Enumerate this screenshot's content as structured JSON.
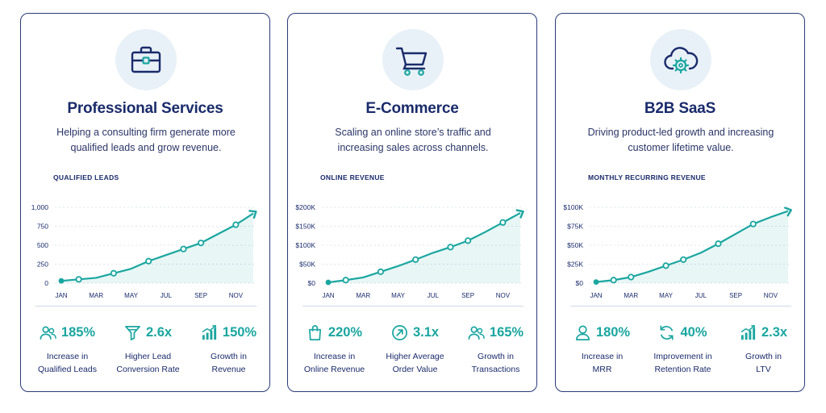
{
  "colors": {
    "accent": "#1aa6a0",
    "navy": "#1a2b6b",
    "icon_bg": "#e9f1f8",
    "border": "#2a3a78"
  },
  "cards": [
    {
      "icon": "briefcase-icon",
      "title": "Professional Services",
      "description": "Helping a consulting firm generate more qualified leads and grow revenue.",
      "chart_label": "QUALIFIED LEADS",
      "metrics": [
        {
          "icon": "users-icon",
          "value": "185%",
          "label": "Increase in\nQualified Leads"
        },
        {
          "icon": "funnel-icon",
          "value": "2.6x",
          "label": "Higher Lead\nConversion Rate"
        },
        {
          "icon": "growth-chart-icon",
          "value": "150%",
          "label": "Growth in\nRevenue"
        }
      ]
    },
    {
      "icon": "shopping-cart-icon",
      "title": "E-Commerce",
      "description": "Scaling an online store’s traffic and increasing sales across channels.",
      "chart_label": "ONLINE REVENUE",
      "metrics": [
        {
          "icon": "shopping-bag-icon",
          "value": "220%",
          "label": "Increase in\nOnline Revenue"
        },
        {
          "icon": "arrow-circle-icon",
          "value": "3.1x",
          "label": "Higher Average\nOrder Value"
        },
        {
          "icon": "users-icon",
          "value": "165%",
          "label": "Growth in\nTransactions"
        }
      ]
    },
    {
      "icon": "cloud-gear-icon",
      "title": "B2B SaaS",
      "description": "Driving product-led growth and increasing customer lifetime value.",
      "chart_label": "MONTHLY RECURRING REVENUE",
      "metrics": [
        {
          "icon": "user-icon",
          "value": "180%",
          "label": "Increase in\nMRR"
        },
        {
          "icon": "refresh-icon",
          "value": "40%",
          "label": "Improvement in\nRetention Rate"
        },
        {
          "icon": "growth-chart-icon",
          "value": "2.3x",
          "label": "Growth in\nLTV"
        }
      ]
    }
  ],
  "chart_data": [
    {
      "type": "line",
      "x_tick_labels": [
        "JAN",
        "MAR",
        "MAY",
        "JUL",
        "SEP",
        "NOV"
      ],
      "y_tick_labels": [
        "0",
        "250",
        "500",
        "750",
        "1,000"
      ],
      "ylim": [
        0,
        1000
      ],
      "x": [
        0,
        1,
        2,
        3,
        4,
        5,
        6,
        7,
        8,
        9,
        10,
        11
      ],
      "values": [
        30,
        50,
        70,
        130,
        190,
        290,
        370,
        450,
        530,
        650,
        770,
        920
      ],
      "markers": [
        0,
        1,
        3,
        5,
        7,
        8,
        10
      ]
    },
    {
      "type": "line",
      "x_tick_labels": [
        "JAN",
        "MAR",
        "MAY",
        "JUL",
        "SEP",
        "NOV"
      ],
      "y_tick_labels": [
        "$0",
        "$50K",
        "$100K",
        "$150K",
        "$200K"
      ],
      "ylim": [
        0,
        200000
      ],
      "x": [
        0,
        1,
        2,
        3,
        4,
        5,
        6,
        7,
        8,
        9,
        10,
        11
      ],
      "values": [
        2000,
        8000,
        15000,
        30000,
        45000,
        62000,
        80000,
        95000,
        112000,
        135000,
        160000,
        185000
      ],
      "markers": [
        0,
        1,
        3,
        5,
        7,
        8,
        10
      ]
    },
    {
      "type": "line",
      "x_tick_labels": [
        "JAN",
        "MAR",
        "MAY",
        "JUL",
        "SEP",
        "NOV"
      ],
      "y_tick_labels": [
        "$0",
        "$25K",
        "$50K",
        "$75K",
        "$100K"
      ],
      "ylim": [
        0,
        100000
      ],
      "x": [
        0,
        1,
        2,
        3,
        4,
        5,
        6,
        7,
        8,
        9,
        10,
        11
      ],
      "values": [
        1500,
        4000,
        8000,
        15000,
        23000,
        31000,
        40000,
        52000,
        65000,
        78000,
        87000,
        95000
      ],
      "markers": [
        0,
        1,
        2,
        4,
        5,
        7,
        9
      ]
    }
  ]
}
